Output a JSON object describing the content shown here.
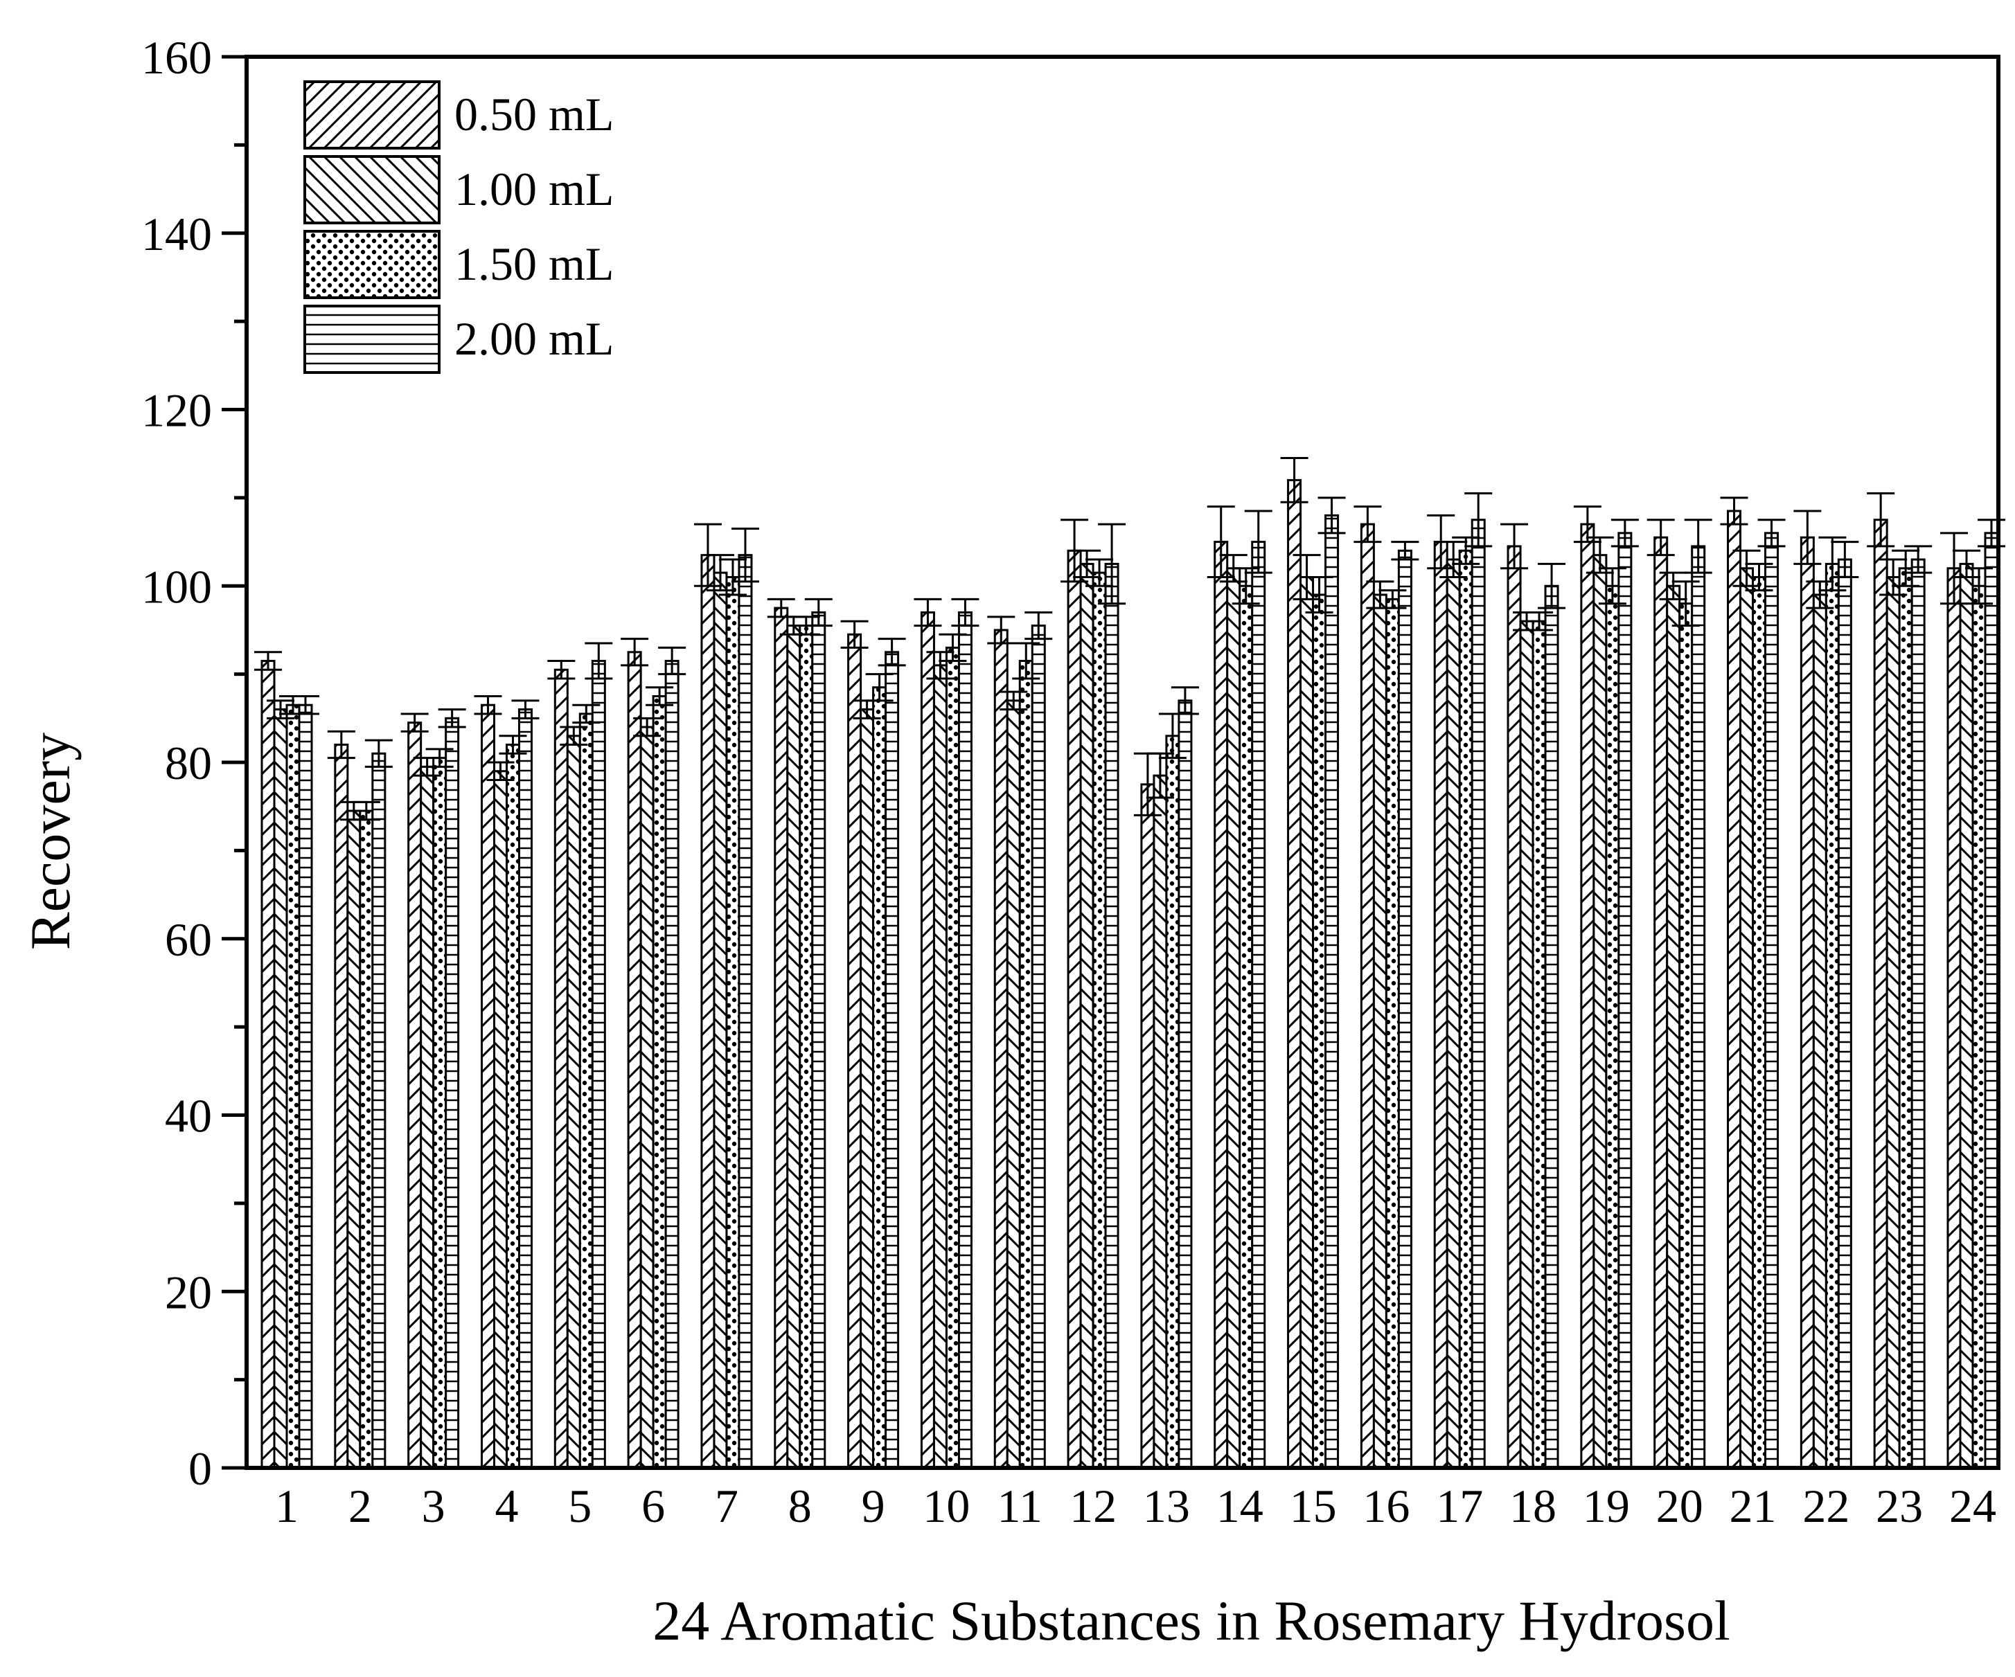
{
  "chart_data": {
    "type": "bar",
    "title": "",
    "xlabel": "24 Aromatic Substances in Rosemary Hydrosol",
    "ylabel": "Recovery",
    "ylim": [
      0,
      160
    ],
    "yticks": [
      0,
      20,
      40,
      60,
      80,
      100,
      120,
      140,
      160
    ],
    "grid": false,
    "legend_position": "top-left",
    "categories": [
      "1",
      "2",
      "3",
      "4",
      "5",
      "6",
      "7",
      "8",
      "9",
      "10",
      "11",
      "12",
      "13",
      "14",
      "15",
      "16",
      "17",
      "18",
      "19",
      "20",
      "21",
      "22",
      "23",
      "24"
    ],
    "series": [
      {
        "name": "0.50 mL",
        "pattern": "diagonal-up",
        "values": [
          91.5,
          82,
          84.5,
          86.5,
          90.5,
          92.5,
          103.5,
          97.5,
          94.5,
          97,
          95,
          104,
          77.5,
          105,
          112,
          107,
          105,
          104.5,
          107,
          105.5,
          108.5,
          105.5,
          107.5,
          102
        ],
        "errors": [
          1,
          1.5,
          1,
          1,
          1,
          1.5,
          3.5,
          1,
          1.5,
          1.5,
          1.5,
          3.5,
          3.5,
          4,
          2.5,
          2,
          3,
          2.5,
          2,
          2,
          1.5,
          3,
          3,
          4
        ]
      },
      {
        "name": "1.00 mL",
        "pattern": "diagonal-down",
        "values": [
          86,
          74.5,
          79.5,
          79,
          83,
          84,
          101.5,
          95.5,
          86,
          91,
          87,
          102.5,
          78.5,
          102,
          101,
          99,
          103,
          96,
          103.5,
          100,
          102,
          99,
          101,
          102.5
        ],
        "errors": [
          1,
          1,
          1,
          1,
          1,
          1,
          2,
          1,
          1,
          1.5,
          1,
          1.5,
          2.5,
          1.5,
          2.5,
          1.5,
          2,
          1,
          2,
          1.5,
          2,
          1.5,
          2,
          1.5
        ]
      },
      {
        "name": "1.50 mL",
        "pattern": "dots",
        "values": [
          86.5,
          74.5,
          80.5,
          82,
          85.5,
          87.5,
          101,
          95.5,
          88.5,
          93,
          91.5,
          101.5,
          83,
          100,
          99,
          98.5,
          104,
          96,
          100,
          98,
          101,
          102.5,
          102,
          100
        ],
        "errors": [
          1,
          1,
          1,
          1,
          1,
          1,
          2,
          1,
          1.5,
          1.5,
          2,
          1.5,
          2.5,
          2,
          2,
          1,
          1.5,
          1,
          2,
          2.5,
          1.5,
          3,
          2,
          2
        ]
      },
      {
        "name": "2.00 mL",
        "pattern": "horizontal",
        "values": [
          86.5,
          81,
          85,
          86,
          91.5,
          91.5,
          103.5,
          97,
          92.5,
          97,
          95.5,
          102.5,
          87,
          105,
          108,
          104,
          107.5,
          100,
          106,
          104.5,
          106,
          103,
          103,
          106
        ],
        "errors": [
          1,
          1.5,
          1,
          1,
          2,
          1.5,
          3,
          1.5,
          1.5,
          1.5,
          1.5,
          4.5,
          1.5,
          3.5,
          2,
          1,
          3,
          2.5,
          1.5,
          3,
          1.5,
          2,
          1.5,
          1.5
        ]
      }
    ]
  }
}
